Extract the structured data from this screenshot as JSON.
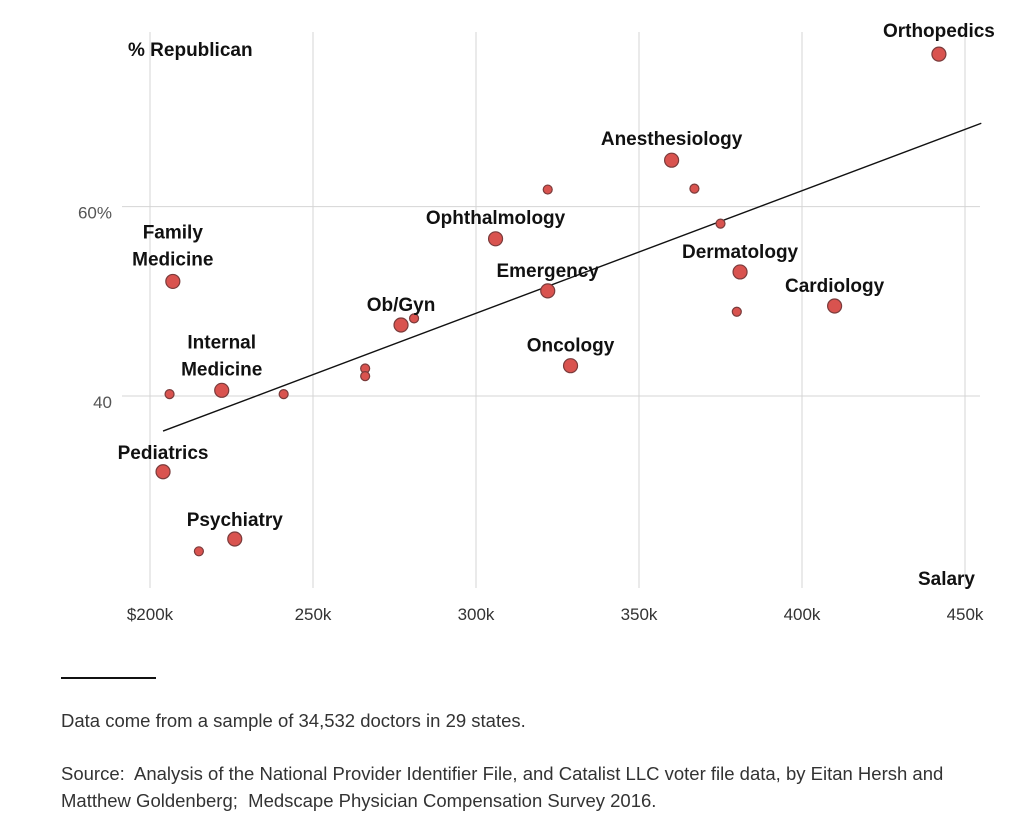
{
  "chart_data": {
    "type": "scatter",
    "title": "",
    "xlabel": "Salary",
    "ylabel": "% Republican",
    "xlim": [
      200,
      450
    ],
    "ylim": [
      20,
      80
    ],
    "xticks": [
      200,
      250,
      300,
      350,
      400,
      450
    ],
    "xtick_labels": [
      "$200k",
      "250k",
      "300k",
      "350k",
      "400k",
      "450k"
    ],
    "yticks": [
      40,
      60
    ],
    "ytick_labels": [
      "40",
      "60%"
    ],
    "grid": true,
    "point_color": "#d9534f",
    "points": [
      {
        "x": 442,
        "y": 76.1,
        "size": "large",
        "label": "Orthopedics"
      },
      {
        "x": 360,
        "y": 64.9,
        "size": "large",
        "label": "Anesthesiology"
      },
      {
        "x": 367,
        "y": 61.9,
        "size": "small",
        "label": ""
      },
      {
        "x": 322,
        "y": 61.8,
        "size": "small",
        "label": ""
      },
      {
        "x": 375,
        "y": 58.2,
        "size": "small",
        "label": ""
      },
      {
        "x": 306,
        "y": 56.6,
        "size": "large",
        "label": "Ophthalmology"
      },
      {
        "x": 381,
        "y": 53.1,
        "size": "large",
        "label": "Dermatology"
      },
      {
        "x": 207,
        "y": 52.1,
        "size": "large",
        "label": "Family\nMedicine"
      },
      {
        "x": 322,
        "y": 51.1,
        "size": "large",
        "label": "Emergency"
      },
      {
        "x": 410,
        "y": 49.5,
        "size": "large",
        "label": "Cardiology"
      },
      {
        "x": 380,
        "y": 48.9,
        "size": "small",
        "label": ""
      },
      {
        "x": 281,
        "y": 48.2,
        "size": "small",
        "label": ""
      },
      {
        "x": 277,
        "y": 47.5,
        "size": "large",
        "label": "Ob/Gyn"
      },
      {
        "x": 329,
        "y": 43.2,
        "size": "large",
        "label": "Oncology"
      },
      {
        "x": 266,
        "y": 42.9,
        "size": "small",
        "label": ""
      },
      {
        "x": 266,
        "y": 42.1,
        "size": "small",
        "label": ""
      },
      {
        "x": 222,
        "y": 40.6,
        "size": "large",
        "label": "Internal\nMedicine"
      },
      {
        "x": 206,
        "y": 40.2,
        "size": "small",
        "label": ""
      },
      {
        "x": 241,
        "y": 40.2,
        "size": "small",
        "label": ""
      },
      {
        "x": 204,
        "y": 32.0,
        "size": "large",
        "label": "Pediatrics"
      },
      {
        "x": 226,
        "y": 24.9,
        "size": "large",
        "label": "Psychiatry"
      },
      {
        "x": 215,
        "y": 23.6,
        "size": "small",
        "label": ""
      }
    ],
    "trendline": {
      "x": [
        204,
        455
      ],
      "y": [
        36.3,
        68.8
      ]
    }
  },
  "footer": {
    "note": "Data come from a sample of 34,532 doctors in 29 states.",
    "source": "Source:  Analysis of the National Provider Identifier File, and Catalist LLC voter file data, by Eitan Hersh and Matthew Goldenberg;  Medscape Physician Compensation Survey 2016."
  }
}
